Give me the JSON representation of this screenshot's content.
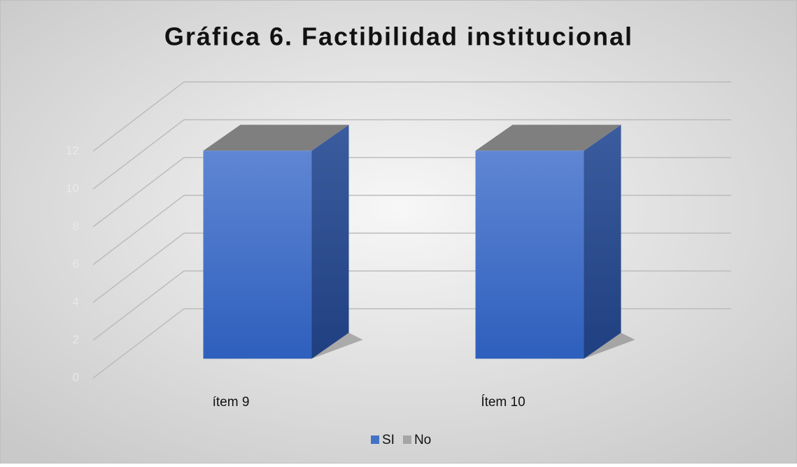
{
  "chart_data": {
    "type": "bar3d",
    "title": "Gráfica 6. Factibilidad institucional",
    "categories": [
      "ítem 9",
      "Ítem 10"
    ],
    "series": [
      {
        "name": "SI",
        "color": "#4472c4",
        "values": [
          11,
          11
        ]
      },
      {
        "name": "No",
        "color": "#a5a5a5",
        "values": [
          0,
          0
        ]
      }
    ],
    "ylim": [
      0,
      12
    ],
    "yticks": [
      0,
      2,
      4,
      6,
      8,
      10,
      12
    ],
    "grid": true,
    "legend": "bottom"
  }
}
